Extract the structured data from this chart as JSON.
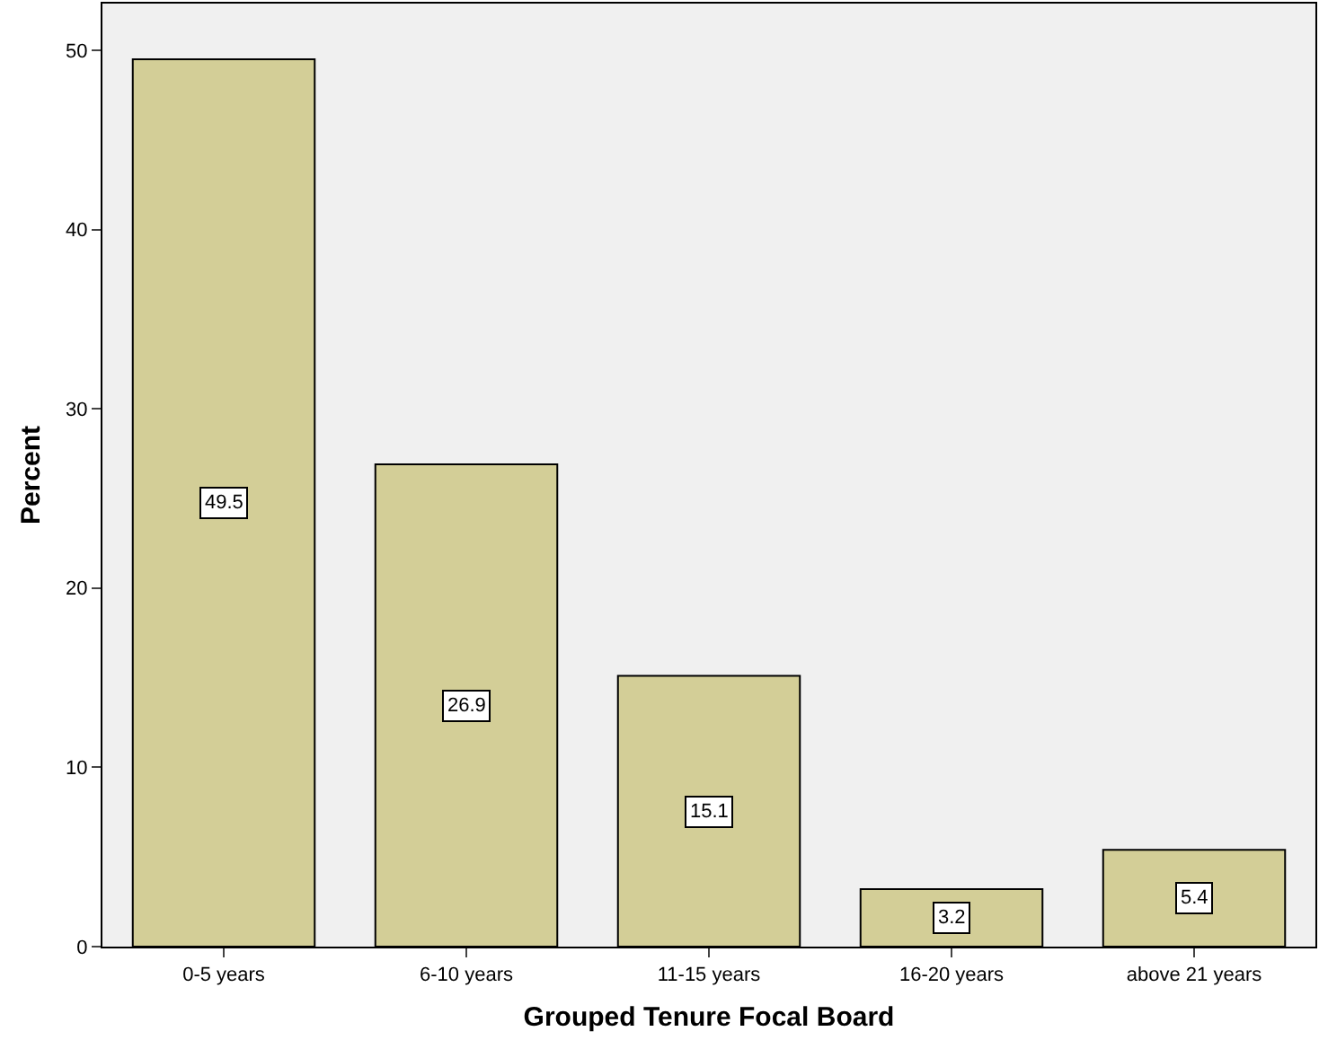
{
  "chart_data": {
    "type": "bar",
    "xlabel": "Grouped Tenure Focal Board",
    "ylabel": "Percent",
    "categories": [
      "0-5 years",
      "6-10 years",
      "11-15 years",
      "16-20 years",
      "above 21 years"
    ],
    "values": [
      49.5,
      26.9,
      15.1,
      3.2,
      5.4
    ],
    "color": "#d3ce97",
    "ylim": [
      0,
      52.6
    ],
    "yticks": [
      0,
      10,
      20,
      30,
      40,
      50
    ],
    "grid": false,
    "data_labels": true
  }
}
